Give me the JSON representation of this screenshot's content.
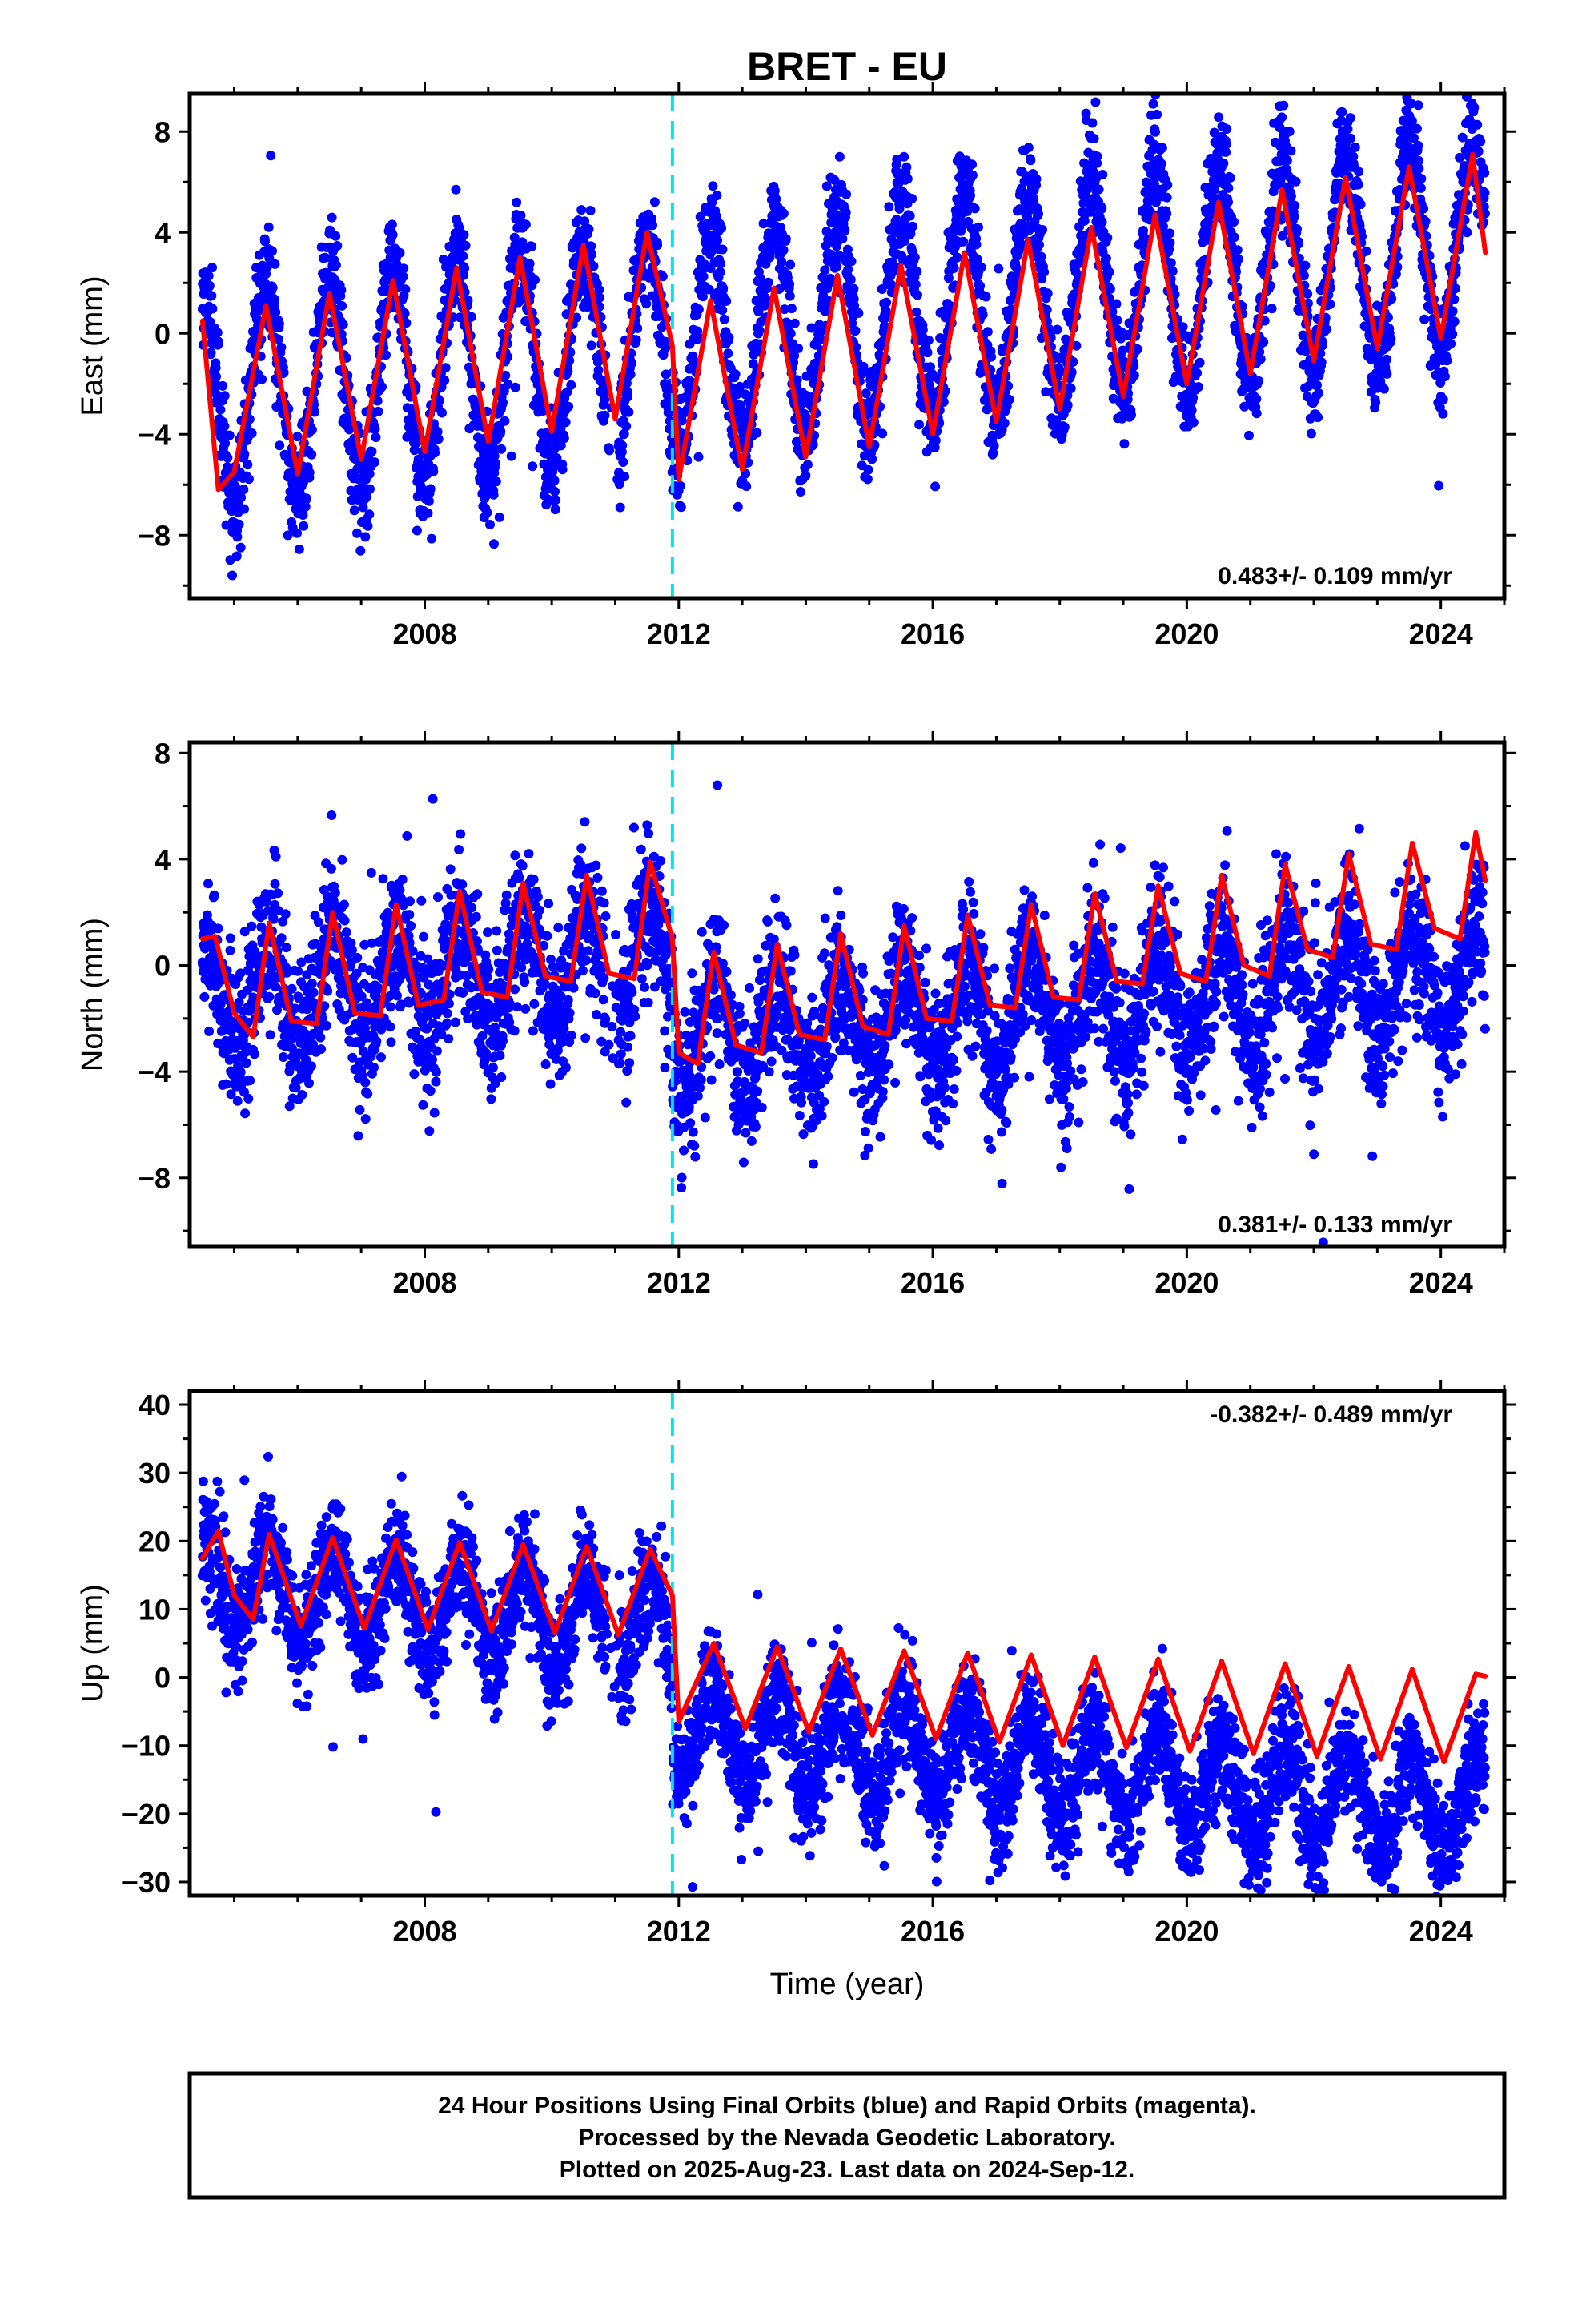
{
  "title": "BRET - EU",
  "xlabel": "Time (year)",
  "footer": [
    "24 Hour Positions Using Final Orbits (blue) and Rapid Orbits (magenta).",
    "Processed by the Nevada Geodetic Laboratory.",
    "Plotted on 2025-Aug-23. Last data on 2024-Sep-12."
  ],
  "colors": {
    "data": "#0000ff",
    "model": "#ff0000",
    "event": "#00e5ee",
    "axis": "#000000"
  },
  "chart_data": [
    {
      "type": "scatter",
      "ylabel": "East (mm)",
      "rate_label": "0.483+/- 0.109 mm/yr",
      "rate_position": "bottom-right",
      "xlim": [
        2004.3,
        2025.0
      ],
      "ylim": [
        -10.5,
        9.5
      ],
      "xticks": [
        2008,
        2012,
        2016,
        2020,
        2024
      ],
      "xtick_labels": [
        "2008",
        "2012",
        "2016",
        "2020",
        "2024"
      ],
      "yticks": [
        -8,
        -4,
        0,
        4,
        8
      ],
      "ytick_labels": [
        "−8",
        "−4",
        "0",
        "4",
        "8"
      ],
      "event_line_x": 2011.9,
      "series": [
        {
          "role": "daily positions",
          "x_start": 2004.5,
          "x_end": 2024.7,
          "trend_start": -2.6,
          "trend_end": 3.5,
          "seasonal_amplitude": 4.3,
          "seasonal_peak_frac": 0.5,
          "scatter_sd": 1.1,
          "offset_at_event": 0.0
        },
        {
          "role": "model fit",
          "x": [
            2004.5,
            2004.75,
            2005.0,
            2005.5,
            2006.0,
            2006.5,
            2007.0,
            2007.5,
            2008.0,
            2008.5,
            2009.0,
            2009.5,
            2010.0,
            2010.5,
            2011.0,
            2011.5,
            2011.9,
            2012.0,
            2012.5,
            2013.0,
            2013.5,
            2014.0,
            2014.5,
            2015.0,
            2015.5,
            2016.0,
            2016.5,
            2017.0,
            2017.5,
            2018.0,
            2018.5,
            2019.0,
            2019.5,
            2020.0,
            2020.5,
            2021.0,
            2021.5,
            2022.0,
            2022.5,
            2023.0,
            2023.5,
            2024.0,
            2024.5,
            2024.7
          ],
          "y": [
            0.5,
            -6.2,
            -5.5,
            1.1,
            -5.6,
            1.6,
            -5.0,
            2.1,
            -4.7,
            2.6,
            -4.3,
            3.0,
            -3.9,
            3.5,
            -3.4,
            4.0,
            -0.5,
            -5.8,
            1.3,
            -5.4,
            1.8,
            -4.9,
            2.3,
            -4.5,
            2.7,
            -4.0,
            3.2,
            -3.5,
            3.7,
            -3.0,
            4.2,
            -2.5,
            4.7,
            -2.0,
            5.2,
            -1.6,
            5.7,
            -1.1,
            6.2,
            -0.6,
            6.6,
            -0.2,
            7.1,
            3.2
          ]
        }
      ]
    },
    {
      "type": "scatter",
      "ylabel": "North (mm)",
      "rate_label": "0.381+/- 0.133 mm/yr",
      "rate_position": "bottom-right",
      "xlim": [
        2004.3,
        2025.0
      ],
      "ylim": [
        -10.6,
        8.4
      ],
      "xticks": [
        2008,
        2012,
        2016,
        2020,
        2024
      ],
      "xtick_labels": [
        "2008",
        "2012",
        "2016",
        "2020",
        "2024"
      ],
      "yticks": [
        -8,
        -4,
        0,
        4,
        8
      ],
      "ytick_labels": [
        "−8",
        "−4",
        "0",
        "4",
        "8"
      ],
      "event_line_x": 2011.9,
      "series": [
        {
          "role": "daily positions",
          "x_start": 2004.5,
          "x_end": 2024.7,
          "trend_start": -1.2,
          "trend_end": 2.6,
          "seasonal_amplitude": 2.0,
          "seasonal_peak_frac": 0.55,
          "scatter_sd": 1.4,
          "offset_at_event": -3.0
        },
        {
          "role": "model fit",
          "x": [
            2004.5,
            2004.7,
            2005.0,
            2005.3,
            2005.55,
            2005.9,
            2006.3,
            2006.55,
            2006.9,
            2007.3,
            2007.55,
            2007.9,
            2008.3,
            2008.55,
            2008.9,
            2009.3,
            2009.55,
            2009.9,
            2010.3,
            2010.55,
            2010.9,
            2011.3,
            2011.55,
            2011.9,
            2012.0,
            2012.3,
            2012.55,
            2012.9,
            2013.3,
            2013.55,
            2013.9,
            2014.3,
            2014.55,
            2014.9,
            2015.3,
            2015.55,
            2015.9,
            2016.3,
            2016.55,
            2016.9,
            2017.3,
            2017.55,
            2017.9,
            2018.3,
            2018.55,
            2018.9,
            2019.3,
            2019.55,
            2019.9,
            2020.3,
            2020.55,
            2020.9,
            2021.3,
            2021.55,
            2021.9,
            2022.3,
            2022.55,
            2022.9,
            2023.3,
            2023.55,
            2023.9,
            2024.3,
            2024.55,
            2024.7
          ],
          "y": [
            1.0,
            1.1,
            -1.8,
            -2.7,
            1.6,
            -2.1,
            -2.2,
            2.0,
            -1.8,
            -1.9,
            2.3,
            -1.5,
            -1.3,
            2.8,
            -1.0,
            -1.2,
            3.1,
            -0.4,
            -0.6,
            3.4,
            -0.3,
            -0.5,
            3.9,
            1.0,
            -3.3,
            -3.7,
            0.5,
            -3.0,
            -3.3,
            0.8,
            -2.6,
            -2.8,
            1.2,
            -2.3,
            -2.6,
            1.5,
            -2.0,
            -2.1,
            1.9,
            -1.5,
            -1.6,
            2.3,
            -1.2,
            -1.3,
            2.7,
            -0.6,
            -0.7,
            3.0,
            -0.3,
            -0.6,
            3.4,
            0.0,
            -0.4,
            3.8,
            0.6,
            0.3,
            4.2,
            0.8,
            0.6,
            4.6,
            1.4,
            1.0,
            5.0,
            3.2
          ]
        }
      ]
    },
    {
      "type": "scatter",
      "ylabel": "Up (mm)",
      "rate_label": "-0.382+/- 0.489 mm/yr",
      "rate_position": "top-right",
      "xlim": [
        2004.3,
        2025.0
      ],
      "ylim": [
        -32,
        42
      ],
      "xticks": [
        2008,
        2012,
        2016,
        2020,
        2024
      ],
      "xtick_labels": [
        "2008",
        "2012",
        "2016",
        "2020",
        "2024"
      ],
      "yticks": [
        -30,
        -20,
        -10,
        0,
        10,
        20,
        30,
        40
      ],
      "ytick_labels": [
        "−30",
        "−20",
        "−10",
        "0",
        "10",
        "20",
        "30",
        "40"
      ],
      "event_line_x": 2011.9,
      "series": [
        {
          "role": "daily positions",
          "x_start": 2004.5,
          "x_end": 2024.7,
          "trend_start": 14.0,
          "trend_end": -5.5,
          "seasonal_amplitude": 7.0,
          "seasonal_peak_frac": 0.55,
          "scatter_sd": 4.2,
          "offset_at_event": -14.5
        },
        {
          "role": "model fit",
          "x": [
            2004.5,
            2004.75,
            2005.0,
            2005.3,
            2005.55,
            2006.05,
            2006.55,
            2007.05,
            2007.55,
            2008.05,
            2008.55,
            2009.05,
            2009.55,
            2010.05,
            2010.55,
            2011.05,
            2011.55,
            2011.9,
            2012.0,
            2012.55,
            2013.05,
            2013.55,
            2014.05,
            2014.55,
            2015.05,
            2015.55,
            2016.05,
            2016.55,
            2017.05,
            2017.55,
            2018.05,
            2018.55,
            2019.05,
            2019.55,
            2020.05,
            2020.55,
            2021.05,
            2021.55,
            2022.05,
            2022.55,
            2023.05,
            2023.55,
            2024.05,
            2024.55,
            2024.7
          ],
          "y": [
            17.5,
            21.5,
            12.0,
            8.5,
            21.0,
            7.5,
            20.5,
            7.2,
            20.2,
            7.0,
            19.8,
            6.8,
            19.5,
            6.5,
            19.2,
            6.2,
            18.8,
            12.0,
            -6.5,
            5.0,
            -7.5,
            4.5,
            -8.0,
            4.2,
            -8.5,
            3.9,
            -9.0,
            3.6,
            -9.5,
            3.3,
            -10.0,
            3.0,
            -10.3,
            2.7,
            -10.8,
            2.4,
            -11.2,
            2.0,
            -11.6,
            1.6,
            -12.0,
            1.2,
            -12.4,
            0.5,
            0.2
          ]
        }
      ]
    }
  ]
}
